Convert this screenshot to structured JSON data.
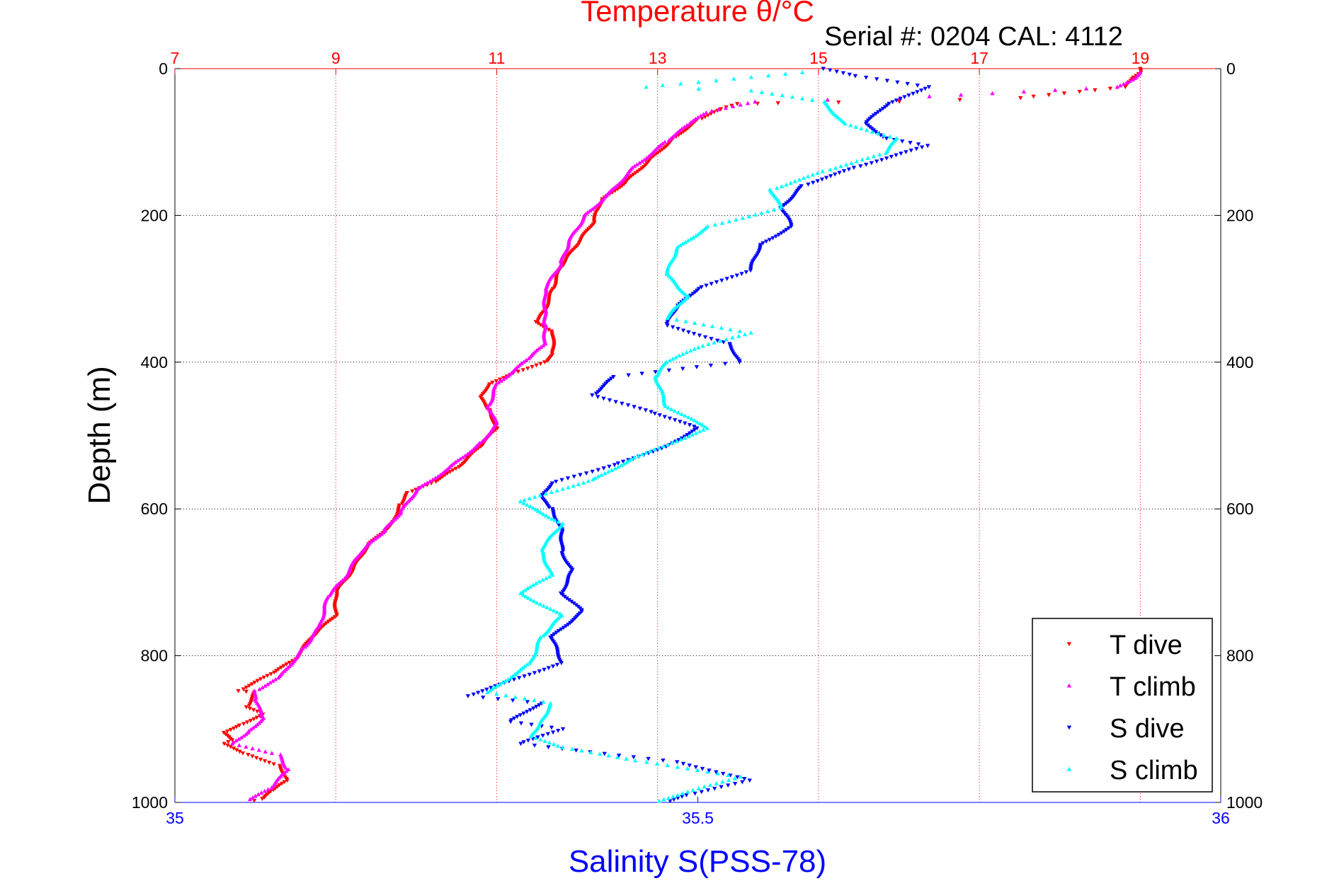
{
  "chart_data": {
    "type": "scatter",
    "title": "Temperature θ/°C",
    "subtitle": "Serial #: 0204  CAL: 4112",
    "xlabel": "Salinity S(PSS-78)",
    "ylabel": "Depth (m)",
    "temperature_axis": {
      "range": [
        7,
        20
      ],
      "ticks": [
        "7",
        "9",
        "11",
        "13",
        "15",
        "17",
        "19"
      ]
    },
    "salinity_axis": {
      "range": [
        35,
        36
      ],
      "ticks": [
        "35",
        "35.5",
        "36"
      ]
    },
    "depth_axis": {
      "range": [
        0,
        1000
      ],
      "reversed": true,
      "ticks": [
        "0",
        "200",
        "400",
        "600",
        "800",
        "1000"
      ]
    },
    "grid": true,
    "legend_position": "bottom-right",
    "colors": {
      "t_dive": "#ff0000",
      "t_climb": "#ff00ff",
      "s_dive": "#0000ff",
      "s_climb": "#00ffff",
      "temp_axis": "#ff0000",
      "sal_axis": "#0000ff"
    },
    "series": [
      {
        "name": "T dive",
        "axis": "temperature",
        "marker": "down-triangle",
        "points": [
          [
            19.0,
            0
          ],
          [
            19.0,
            5
          ],
          [
            18.9,
            12
          ],
          [
            18.8,
            25
          ],
          [
            17.5,
            40
          ],
          [
            16.0,
            45
          ],
          [
            14.5,
            47
          ],
          [
            14.0,
            48
          ],
          [
            13.8,
            55
          ],
          [
            13.5,
            70
          ],
          [
            13.2,
            95
          ],
          [
            12.9,
            125
          ],
          [
            12.6,
            155
          ],
          [
            12.3,
            180
          ],
          [
            12.2,
            210
          ],
          [
            12.0,
            240
          ],
          [
            11.8,
            270
          ],
          [
            11.7,
            300
          ],
          [
            11.6,
            330
          ],
          [
            11.5,
            345
          ],
          [
            11.7,
            360
          ],
          [
            11.7,
            390
          ],
          [
            11.6,
            400
          ],
          [
            11.2,
            415
          ],
          [
            10.9,
            430
          ],
          [
            10.8,
            450
          ],
          [
            10.9,
            465
          ],
          [
            11.0,
            490
          ],
          [
            10.8,
            515
          ],
          [
            10.5,
            545
          ],
          [
            10.2,
            565
          ],
          [
            9.9,
            578
          ],
          [
            9.8,
            595
          ],
          [
            9.7,
            620
          ],
          [
            9.4,
            650
          ],
          [
            9.2,
            685
          ],
          [
            9.0,
            715
          ],
          [
            9.0,
            745
          ],
          [
            8.7,
            775
          ],
          [
            8.5,
            805
          ],
          [
            8.2,
            825
          ],
          [
            7.8,
            848
          ],
          [
            8.0,
            850
          ],
          [
            7.9,
            870
          ],
          [
            8.1,
            880
          ],
          [
            7.8,
            895
          ],
          [
            7.6,
            905
          ],
          [
            7.7,
            915
          ],
          [
            7.6,
            920
          ],
          [
            7.9,
            935
          ],
          [
            8.3,
            950
          ],
          [
            8.4,
            970
          ],
          [
            8.2,
            985
          ],
          [
            8.1,
            995
          ],
          [
            7.9,
            1000
          ]
        ]
      },
      {
        "name": "T climb",
        "axis": "temperature",
        "marker": "up-triangle",
        "points": [
          [
            19.0,
            5
          ],
          [
            18.9,
            15
          ],
          [
            18.7,
            25
          ],
          [
            16.0,
            40
          ],
          [
            14.2,
            45
          ],
          [
            13.6,
            60
          ],
          [
            13.4,
            75
          ],
          [
            13.1,
            100
          ],
          [
            12.7,
            135
          ],
          [
            12.4,
            170
          ],
          [
            12.1,
            200
          ],
          [
            11.9,
            235
          ],
          [
            11.8,
            265
          ],
          [
            11.6,
            300
          ],
          [
            11.6,
            330
          ],
          [
            11.6,
            350
          ],
          [
            11.6,
            375
          ],
          [
            11.4,
            395
          ],
          [
            11.0,
            430
          ],
          [
            10.9,
            460
          ],
          [
            11.0,
            485
          ],
          [
            10.8,
            510
          ],
          [
            10.4,
            545
          ],
          [
            10.0,
            575
          ],
          [
            9.8,
            605
          ],
          [
            9.6,
            630
          ],
          [
            9.3,
            660
          ],
          [
            9.1,
            695
          ],
          [
            8.9,
            720
          ],
          [
            8.8,
            760
          ],
          [
            8.6,
            790
          ],
          [
            8.3,
            830
          ],
          [
            8.0,
            848
          ],
          [
            8.0,
            860
          ],
          [
            8.1,
            885
          ],
          [
            7.9,
            905
          ],
          [
            7.7,
            920
          ],
          [
            8.3,
            935
          ],
          [
            8.4,
            955
          ],
          [
            8.2,
            980
          ],
          [
            7.9,
            998
          ]
        ]
      },
      {
        "name": "S dive",
        "axis": "salinity",
        "marker": "down-triangle",
        "points": [
          [
            35.62,
            0
          ],
          [
            35.65,
            10
          ],
          [
            35.72,
            25
          ],
          [
            35.68,
            50
          ],
          [
            35.66,
            75
          ],
          [
            35.68,
            95
          ],
          [
            35.72,
            105
          ],
          [
            35.65,
            135
          ],
          [
            35.6,
            160
          ],
          [
            35.58,
            190
          ],
          [
            35.59,
            215
          ],
          [
            35.56,
            240
          ],
          [
            35.55,
            275
          ],
          [
            35.5,
            300
          ],
          [
            35.48,
            325
          ],
          [
            35.47,
            350
          ],
          [
            35.53,
            375
          ],
          [
            35.54,
            400
          ],
          [
            35.42,
            420
          ],
          [
            35.4,
            445
          ],
          [
            35.46,
            470
          ],
          [
            35.5,
            490
          ],
          [
            35.47,
            515
          ],
          [
            35.42,
            540
          ],
          [
            35.36,
            565
          ],
          [
            35.35,
            585
          ],
          [
            35.36,
            600
          ],
          [
            35.37,
            630
          ],
          [
            35.37,
            660
          ],
          [
            35.38,
            685
          ],
          [
            35.37,
            715
          ],
          [
            35.39,
            740
          ],
          [
            35.36,
            775
          ],
          [
            35.37,
            810
          ],
          [
            35.28,
            855
          ],
          [
            35.35,
            865
          ],
          [
            35.32,
            890
          ],
          [
            35.37,
            900
          ],
          [
            35.33,
            920
          ],
          [
            35.48,
            945
          ],
          [
            35.55,
            970
          ],
          [
            35.49,
            990
          ],
          [
            35.47,
            1000
          ]
        ]
      },
      {
        "name": "S climb",
        "axis": "salinity",
        "marker": "up-triangle",
        "points": [
          [
            35.6,
            5
          ],
          [
            35.45,
            25
          ],
          [
            35.55,
            30
          ],
          [
            35.62,
            45
          ],
          [
            35.64,
            75
          ],
          [
            35.69,
            95
          ],
          [
            35.68,
            115
          ],
          [
            35.62,
            140
          ],
          [
            35.57,
            165
          ],
          [
            35.58,
            190
          ],
          [
            35.51,
            215
          ],
          [
            35.48,
            245
          ],
          [
            35.47,
            280
          ],
          [
            35.49,
            310
          ],
          [
            35.47,
            340
          ],
          [
            35.55,
            360
          ],
          [
            35.5,
            380
          ],
          [
            35.47,
            400
          ],
          [
            35.46,
            420
          ],
          [
            35.47,
            460
          ],
          [
            35.51,
            490
          ],
          [
            35.44,
            530
          ],
          [
            35.4,
            560
          ],
          [
            35.33,
            590
          ],
          [
            35.37,
            620
          ],
          [
            35.35,
            655
          ],
          [
            35.36,
            690
          ],
          [
            35.33,
            715
          ],
          [
            35.37,
            745
          ],
          [
            35.35,
            775
          ],
          [
            35.34,
            810
          ],
          [
            35.3,
            850
          ],
          [
            35.36,
            865
          ],
          [
            35.35,
            890
          ],
          [
            35.34,
            910
          ],
          [
            35.37,
            925
          ],
          [
            35.45,
            945
          ],
          [
            35.54,
            965
          ],
          [
            35.48,
            990
          ],
          [
            35.46,
            1000
          ]
        ]
      }
    ]
  }
}
